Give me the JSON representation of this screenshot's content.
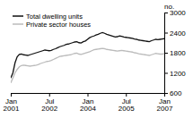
{
  "chart_data": {
    "type": "line",
    "title": "",
    "ylabel": "no.",
    "categories": [
      "Jan\n2001",
      null,
      null,
      null,
      null,
      null,
      null,
      null,
      null,
      null,
      null,
      null,
      null,
      null,
      null,
      null,
      null,
      null,
      "Jul\n2002",
      null,
      null,
      null,
      null,
      null,
      null,
      null,
      null,
      null,
      null,
      null,
      null,
      null,
      null,
      null,
      null,
      null,
      "Jan\n2004",
      null,
      null,
      null,
      null,
      null,
      null,
      null,
      null,
      null,
      null,
      null,
      null,
      null,
      null,
      null,
      null,
      null,
      "Jul\n2005",
      null,
      null,
      null,
      null,
      null,
      null,
      null,
      null,
      null,
      null,
      null,
      null,
      null,
      null,
      null,
      null,
      null,
      "Jan\n2007"
    ],
    "series": [
      {
        "name": "Total dwelling units",
        "color": "#111111",
        "values": [
          1050,
          1200,
          1500,
          1680,
          1750,
          1760,
          1740,
          1730,
          1720,
          1740,
          1760,
          1780,
          1800,
          1820,
          1840,
          1860,
          1880,
          1870,
          1860,
          1870,
          1900,
          1920,
          1950,
          1980,
          2000,
          2020,
          2050,
          2060,
          2080,
          2100,
          2120,
          2130,
          2100,
          2090,
          2130,
          2150,
          2200,
          2250,
          2280,
          2300,
          2330,
          2350,
          2380,
          2400,
          2380,
          2350,
          2330,
          2310,
          2290,
          2270,
          2280,
          2300,
          2290,
          2270,
          2260,
          2250,
          2240,
          2230,
          2210,
          2200,
          2180,
          2170,
          2160,
          2150,
          2140,
          2130,
          2160,
          2180,
          2200,
          2190,
          2200,
          2210,
          2220
        ]
      },
      {
        "name": "Private sector houses",
        "color": "#bbbbbb",
        "values": [
          900,
          1050,
          1200,
          1300,
          1380,
          1420,
          1430,
          1420,
          1410,
          1400,
          1410,
          1420,
          1430,
          1450,
          1480,
          1500,
          1520,
          1540,
          1550,
          1570,
          1600,
          1630,
          1660,
          1690,
          1700,
          1710,
          1720,
          1730,
          1740,
          1760,
          1780,
          1790,
          1760,
          1750,
          1770,
          1790,
          1810,
          1830,
          1860,
          1890,
          1900,
          1910,
          1920,
          1930,
          1920,
          1900,
          1890,
          1880,
          1870,
          1860,
          1850,
          1860,
          1870,
          1860,
          1850,
          1840,
          1830,
          1820,
          1800,
          1790,
          1770,
          1760,
          1750,
          1740,
          1730,
          1720,
          1740,
          1760,
          1780,
          1770,
          1760,
          1760,
          1770
        ]
      }
    ],
    "ylim": [
      600,
      3000
    ],
    "yticks": [
      600,
      1200,
      1800,
      2400,
      3000
    ],
    "grid": false,
    "legend": "upper left"
  }
}
